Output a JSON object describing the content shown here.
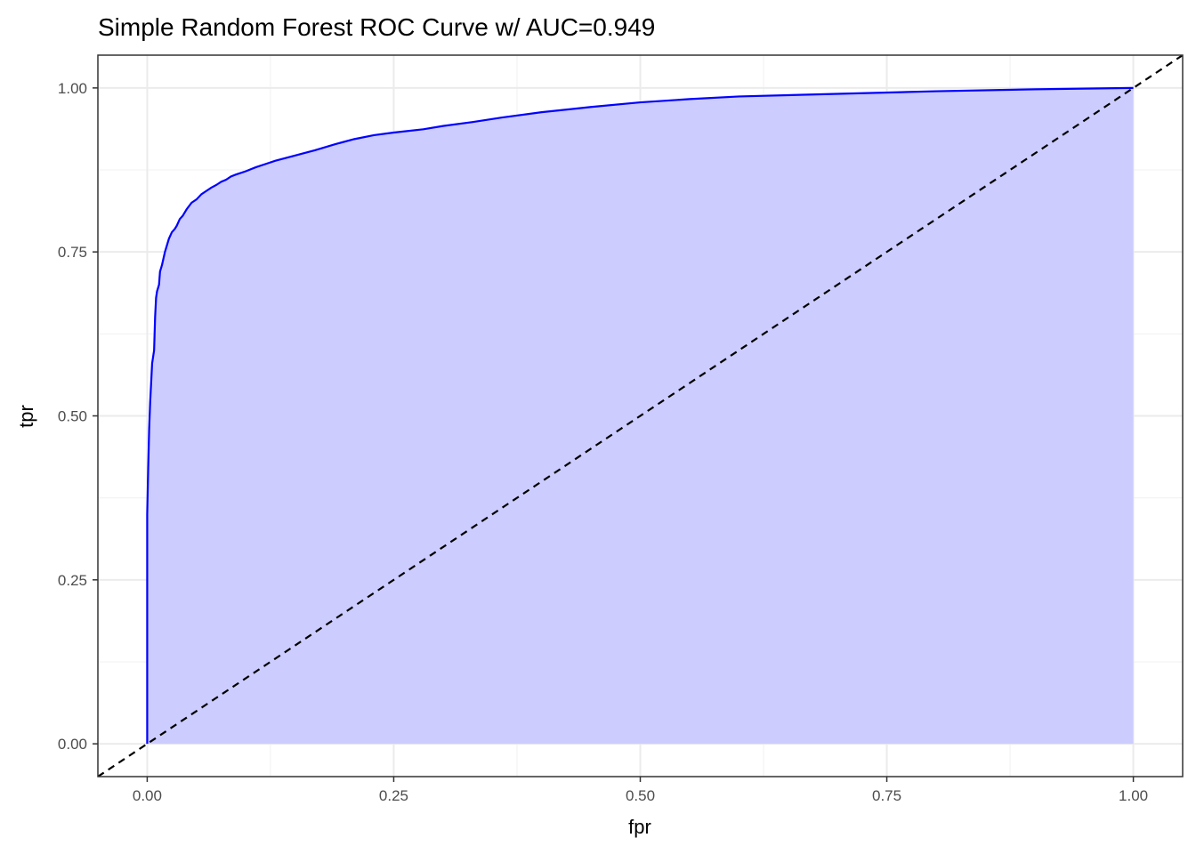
{
  "chart_data": {
    "type": "area",
    "title": "Simple Random Forest ROC Curve w/ AUC=0.949",
    "xlabel": "fpr",
    "ylabel": "tpr",
    "xlim": [
      -0.05,
      1.05
    ],
    "ylim": [
      -0.05,
      1.05
    ],
    "xticks": [
      0.0,
      0.25,
      0.5,
      0.75,
      1.0
    ],
    "yticks": [
      0.0,
      0.25,
      0.5,
      0.75,
      1.0
    ],
    "xtick_labels": [
      "0.00",
      "0.25",
      "0.50",
      "0.75",
      "1.00"
    ],
    "ytick_labels": [
      "0.00",
      "0.25",
      "0.50",
      "0.75",
      "1.00"
    ],
    "grid": true,
    "legend": "none",
    "colors": {
      "curve": "#0000ff",
      "fill": "#ccccff",
      "diagonal": "#000000",
      "grid_major": "#ebebeb",
      "grid_minor": "#f3f3f3",
      "panel_border": "#333333"
    },
    "series": [
      {
        "x": [
          0.0,
          0.0,
          0.001,
          0.002,
          0.003,
          0.005,
          0.007,
          0.008,
          0.009,
          0.01,
          0.012,
          0.013,
          0.015,
          0.018,
          0.02,
          0.022,
          0.025,
          0.028,
          0.03,
          0.033,
          0.036,
          0.04,
          0.045,
          0.05,
          0.055,
          0.06,
          0.065,
          0.07,
          0.075,
          0.08,
          0.085,
          0.09,
          0.1,
          0.11,
          0.12,
          0.13,
          0.15,
          0.17,
          0.19,
          0.21,
          0.23,
          0.25,
          0.28,
          0.3,
          0.33,
          0.36,
          0.4,
          0.45,
          0.5,
          0.55,
          0.6,
          0.7,
          0.8,
          0.9,
          1.0
        ],
        "y": [
          0.0,
          0.35,
          0.42,
          0.48,
          0.52,
          0.58,
          0.6,
          0.65,
          0.68,
          0.69,
          0.7,
          0.72,
          0.73,
          0.75,
          0.76,
          0.77,
          0.78,
          0.785,
          0.79,
          0.8,
          0.805,
          0.815,
          0.825,
          0.83,
          0.838,
          0.843,
          0.848,
          0.852,
          0.857,
          0.86,
          0.865,
          0.868,
          0.873,
          0.879,
          0.884,
          0.889,
          0.897,
          0.905,
          0.914,
          0.922,
          0.928,
          0.932,
          0.937,
          0.942,
          0.948,
          0.955,
          0.963,
          0.971,
          0.978,
          0.983,
          0.987,
          0.991,
          0.995,
          0.998,
          1.0
        ]
      }
    ],
    "reference_line": {
      "x": [
        -0.05,
        1.05
      ],
      "y": [
        -0.05,
        1.05
      ],
      "style": "dashed"
    }
  }
}
